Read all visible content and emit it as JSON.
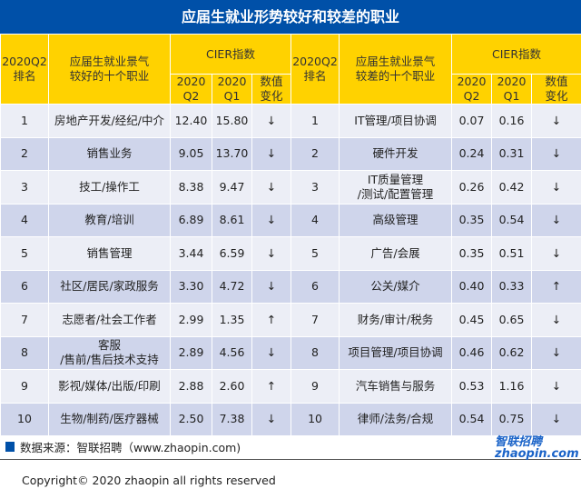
{
  "title": "应届生就业形势较好和较差的职业",
  "header": {
    "rank": "2020Q2\n排名",
    "good": "应届生就业景气\n较好的十个职业",
    "bad": "应届生就业景气\n较差的十个职业",
    "cier": "CIER指数",
    "q2": "2020\nQ2",
    "q1": "2020\nQ1",
    "change": "数值\n变化"
  },
  "rows": [
    {
      "rank": "1",
      "good": "房地产开发/经纪/中介",
      "g2": "12.40",
      "g1": "15.80",
      "gc": "↓",
      "bad": "IT管理/项目协调",
      "b2": "0.07",
      "b1": "0.16",
      "bc": "↓"
    },
    {
      "rank": "2",
      "good": "销售业务",
      "g2": "9.05",
      "g1": "13.70",
      "gc": "↓",
      "bad": "硬件开发",
      "b2": "0.24",
      "b1": "0.31",
      "bc": "↓"
    },
    {
      "rank": "3",
      "good": "技工/操作工",
      "g2": "8.38",
      "g1": "9.47",
      "gc": "↓",
      "bad": "IT质量管理\n/测试/配置管理",
      "b2": "0.26",
      "b1": "0.42",
      "bc": "↓"
    },
    {
      "rank": "4",
      "good": "教育/培训",
      "g2": "6.89",
      "g1": "8.61",
      "gc": "↓",
      "bad": "高级管理",
      "b2": "0.35",
      "b1": "0.54",
      "bc": "↓"
    },
    {
      "rank": "5",
      "good": "销售管理",
      "g2": "3.44",
      "g1": "6.59",
      "gc": "↓",
      "bad": "广告/会展",
      "b2": "0.35",
      "b1": "0.51",
      "bc": "↓"
    },
    {
      "rank": "6",
      "good": "社区/居民/家政服务",
      "g2": "3.30",
      "g1": "4.72",
      "gc": "↓",
      "bad": "公关/媒介",
      "b2": "0.40",
      "b1": "0.33",
      "bc": "↑"
    },
    {
      "rank": "7",
      "good": "志愿者/社会工作者",
      "g2": "2.99",
      "g1": "1.35",
      "gc": "↑",
      "bad": "财务/审计/税务",
      "b2": "0.45",
      "b1": "0.65",
      "bc": "↓"
    },
    {
      "rank": "8",
      "good": "客服\n/售前/售后技术支持",
      "g2": "2.89",
      "g1": "4.56",
      "gc": "↓",
      "bad": "项目管理/项目协调",
      "b2": "0.46",
      "b1": "0.62",
      "bc": "↓"
    },
    {
      "rank": "9",
      "good": "影视/媒体/出版/印刷",
      "g2": "2.88",
      "g1": "2.60",
      "gc": "↑",
      "bad": "汽车销售与服务",
      "b2": "0.53",
      "b1": "1.16",
      "bc": "↓"
    },
    {
      "rank": "10",
      "good": "生物/制药/医疗器械",
      "g2": "2.50",
      "g1": "7.38",
      "gc": "↓",
      "bad": "律师/法务/合规",
      "b2": "0.54",
      "b1": "0.75",
      "bc": "↓"
    }
  ],
  "source": "数据来源：智联招聘（www.zhaopin.com)",
  "copyright": "Copyright© 2020 zhaopin all rights reserved",
  "watermark": "智联招聘 zhaopin.com",
  "colors": {
    "title_bg": "#0050a8",
    "header_bg": "#ffd200",
    "row_light": "#eceef6",
    "row_dark": "#cfd5eb"
  }
}
